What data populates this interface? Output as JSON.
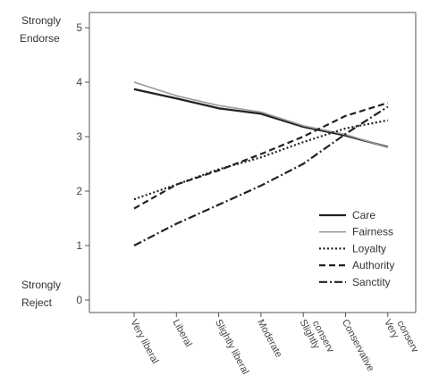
{
  "chart_data": {
    "type": "line",
    "title": "",
    "xlabel": "",
    "ylabel": "",
    "categories": [
      "Very liberal",
      "Liberal",
      "Slightly liberal",
      "Moderate",
      "Slightly conserv",
      "Conservative",
      "Very conserv"
    ],
    "ylim": [
      0,
      5
    ],
    "yticks": [
      0,
      1,
      2,
      3,
      4,
      5
    ],
    "y_end_labels": {
      "top": [
        "Strongly",
        "Endorse"
      ],
      "bottom": [
        "Strongly",
        "Reject"
      ]
    },
    "grid": false,
    "legend_position": "bottom-right",
    "series": [
      {
        "name": "Care",
        "style": "solid-thick",
        "color": "#222222",
        "values": [
          3.87,
          3.7,
          3.52,
          3.42,
          3.18,
          3.02,
          2.81
        ]
      },
      {
        "name": "Fairness",
        "style": "solid-thin",
        "color": "#999999",
        "values": [
          4.0,
          3.75,
          3.57,
          3.45,
          3.2,
          3.04,
          2.8
        ]
      },
      {
        "name": "Loyalty",
        "style": "dotted",
        "color": "#222222",
        "values": [
          1.85,
          2.12,
          2.4,
          2.62,
          2.9,
          3.15,
          3.3
        ]
      },
      {
        "name": "Authority",
        "style": "dashed",
        "color": "#222222",
        "values": [
          1.68,
          2.12,
          2.38,
          2.68,
          3.0,
          3.38,
          3.62
        ]
      },
      {
        "name": "Sanctity",
        "style": "dashdot",
        "color": "#222222",
        "values": [
          1.0,
          1.4,
          1.75,
          2.1,
          2.5,
          3.05,
          3.55
        ]
      }
    ]
  }
}
